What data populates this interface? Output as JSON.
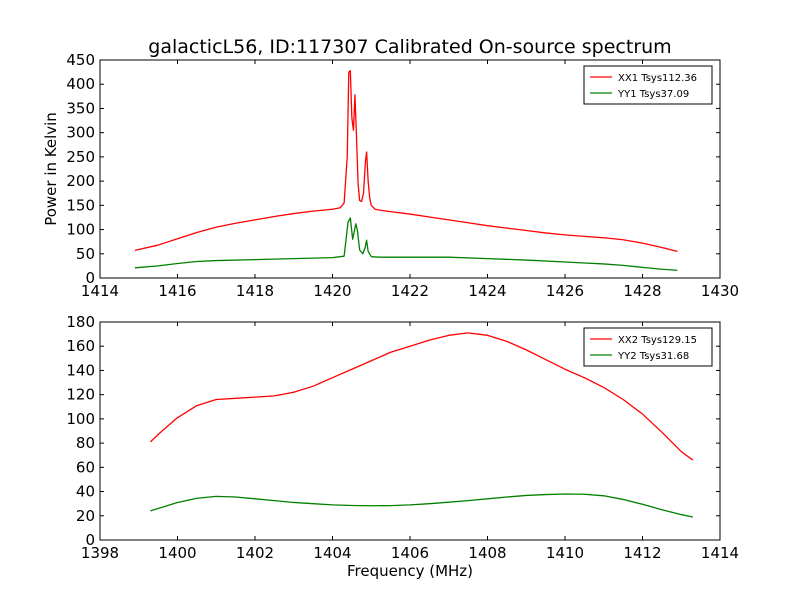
{
  "figure": {
    "title": "galacticL56, ID:117307 Calibrated On-source spectrum",
    "ylabel": "Power in Kelvin",
    "xlabel": "Frequency (MHz)"
  },
  "chart_data": [
    {
      "type": "line",
      "title": "galacticL56, ID:117307 Calibrated On-source spectrum",
      "xlabel": "",
      "ylabel": "Power in Kelvin",
      "xlim": [
        1414,
        1430
      ],
      "ylim": [
        0,
        450
      ],
      "xticks": [
        "1414",
        "1416",
        "1418",
        "1420",
        "1422",
        "1424",
        "1426",
        "1428",
        "1430"
      ],
      "yticks": [
        "0",
        "50",
        "100",
        "150",
        "200",
        "250",
        "300",
        "350",
        "400",
        "450"
      ],
      "grid": false,
      "legend_position": "top-right",
      "series": [
        {
          "name": "XX1 Tsys112.36",
          "color": "#ff0000",
          "x": [
            1414.9,
            1415.5,
            1416.0,
            1416.5,
            1417.0,
            1417.5,
            1418.0,
            1418.5,
            1419.0,
            1419.5,
            1420.0,
            1420.2,
            1420.3,
            1420.38,
            1420.42,
            1420.46,
            1420.5,
            1420.54,
            1420.58,
            1420.62,
            1420.66,
            1420.7,
            1420.75,
            1420.8,
            1420.85,
            1420.88,
            1420.92,
            1420.96,
            1421.0,
            1421.1,
            1421.3,
            1421.5,
            1422.0,
            1422.5,
            1423.0,
            1423.5,
            1424.0,
            1424.5,
            1425.0,
            1425.5,
            1426.0,
            1426.5,
            1427.0,
            1427.5,
            1428.0,
            1428.5,
            1428.9
          ],
          "y": [
            57,
            68,
            81,
            94,
            105,
            113,
            120,
            127,
            133,
            138,
            142,
            145,
            155,
            250,
            425,
            428,
            330,
            305,
            378,
            290,
            195,
            160,
            158,
            175,
            240,
            260,
            200,
            165,
            150,
            142,
            139,
            137,
            132,
            126,
            120,
            114,
            108,
            103,
            98,
            93,
            89,
            86,
            83,
            79,
            72,
            63,
            55
          ]
        },
        {
          "name": "YY1 Tsys37.09",
          "color": "#008000",
          "x": [
            1414.9,
            1415.5,
            1416.0,
            1416.5,
            1417.0,
            1418.0,
            1419.0,
            1420.0,
            1420.3,
            1420.4,
            1420.46,
            1420.52,
            1420.56,
            1420.6,
            1420.64,
            1420.7,
            1420.78,
            1420.84,
            1420.88,
            1420.92,
            1421.0,
            1421.2,
            1422.0,
            1423.0,
            1424.0,
            1425.0,
            1426.0,
            1426.5,
            1427.0,
            1427.5,
            1428.0,
            1428.5,
            1428.9
          ],
          "y": [
            21,
            25,
            30,
            34,
            36,
            38,
            40,
            42,
            45,
            115,
            124,
            80,
            95,
            112,
            100,
            58,
            50,
            62,
            78,
            55,
            44,
            43,
            43,
            43,
            40,
            37,
            33,
            31,
            29,
            26,
            22,
            18,
            16
          ]
        }
      ]
    },
    {
      "type": "line",
      "title": "",
      "xlabel": "Frequency (MHz)",
      "ylabel": "",
      "xlim": [
        1398,
        1414
      ],
      "ylim": [
        0,
        180
      ],
      "xticks": [
        "1398",
        "1400",
        "1402",
        "1404",
        "1406",
        "1408",
        "1410",
        "1412",
        "1414"
      ],
      "yticks": [
        "0",
        "20",
        "40",
        "60",
        "80",
        "100",
        "120",
        "140",
        "160",
        "180"
      ],
      "grid": false,
      "legend_position": "top-right",
      "series": [
        {
          "name": "XX2 Tsys129.15",
          "color": "#ff0000",
          "x": [
            1399.3,
            1399.6,
            1400.0,
            1400.5,
            1401.0,
            1401.5,
            1402.0,
            1402.5,
            1403.0,
            1403.5,
            1404.0,
            1404.5,
            1405.0,
            1405.5,
            1406.0,
            1406.5,
            1407.0,
            1407.5,
            1408.0,
            1408.5,
            1409.0,
            1409.5,
            1410.0,
            1410.5,
            1411.0,
            1411.5,
            1412.0,
            1412.5,
            1413.0,
            1413.3
          ],
          "y": [
            81,
            90,
            101,
            111,
            116,
            117,
            118,
            119,
            122,
            127,
            134,
            141,
            148,
            155,
            160,
            165,
            169,
            171,
            169,
            164,
            157,
            149,
            141,
            134,
            126,
            116,
            104,
            89,
            73,
            66
          ]
        },
        {
          "name": "YY2 Tsys31.68",
          "color": "#008000",
          "x": [
            1399.3,
            1399.7,
            1400.0,
            1400.5,
            1401.0,
            1401.5,
            1402.0,
            1402.5,
            1403.0,
            1403.5,
            1404.0,
            1404.5,
            1405.0,
            1405.5,
            1406.0,
            1406.5,
            1407.0,
            1407.5,
            1408.0,
            1408.5,
            1409.0,
            1409.5,
            1410.0,
            1410.5,
            1411.0,
            1411.5,
            1412.0,
            1412.5,
            1413.0,
            1413.3
          ],
          "y": [
            24,
            28,
            31,
            34.5,
            36,
            35.5,
            34,
            32.5,
            31,
            30,
            29,
            28.5,
            28.3,
            28.4,
            29,
            30,
            31.2,
            32.5,
            34,
            35.5,
            36.8,
            37.5,
            38,
            37.8,
            36.5,
            33.5,
            29.5,
            25,
            21,
            19
          ]
        }
      ]
    }
  ]
}
